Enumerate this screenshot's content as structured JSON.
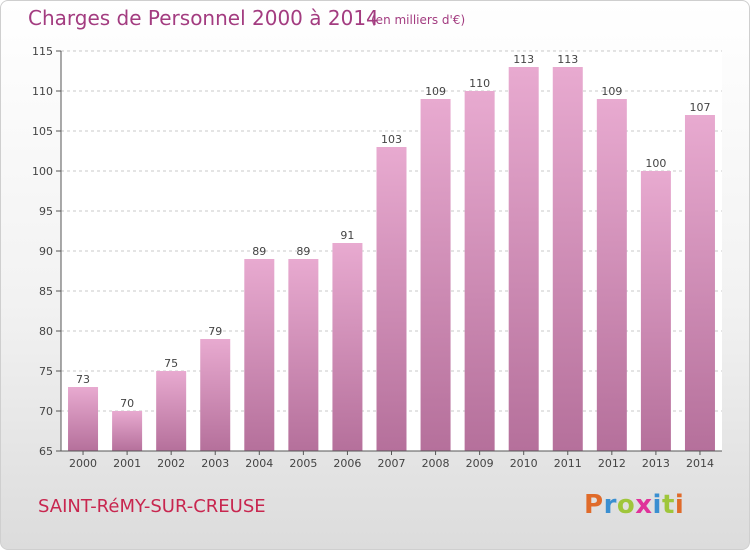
{
  "header": {
    "title": "Charges de Personnel 2000 à 2014",
    "subtitle": "(en milliers d'€)"
  },
  "footer": {
    "commune": "SAINT-RéMY-SUR-CREUSE",
    "logo": "Proxiti"
  },
  "colors": {
    "title": "#a33c80",
    "commune": "#c8264f",
    "bar_top": "#e8aad0",
    "bar_bottom": "#b5709b",
    "logo_letters": [
      "#e06b2a",
      "#3a8fd1",
      "#9fc63b",
      "#e0329a",
      "#3a8fd1",
      "#9fc63b",
      "#e06b2a"
    ]
  },
  "chart_data": {
    "type": "bar",
    "title": "Charges de Personnel 2000 à 2014",
    "subtitle": "(en milliers d'€)",
    "xlabel": "",
    "ylabel": "",
    "categories": [
      "2000",
      "2001",
      "2002",
      "2003",
      "2004",
      "2005",
      "2006",
      "2007",
      "2008",
      "2009",
      "2010",
      "2011",
      "2012",
      "2013",
      "2014"
    ],
    "values": [
      73,
      70,
      75,
      79,
      89,
      89,
      91,
      103,
      109,
      110,
      113,
      113,
      109,
      100,
      107
    ],
    "ylim": [
      65,
      115
    ],
    "yticks": [
      65,
      70,
      75,
      80,
      85,
      90,
      95,
      100,
      105,
      110,
      115
    ],
    "grid": true,
    "data_labels": true
  }
}
